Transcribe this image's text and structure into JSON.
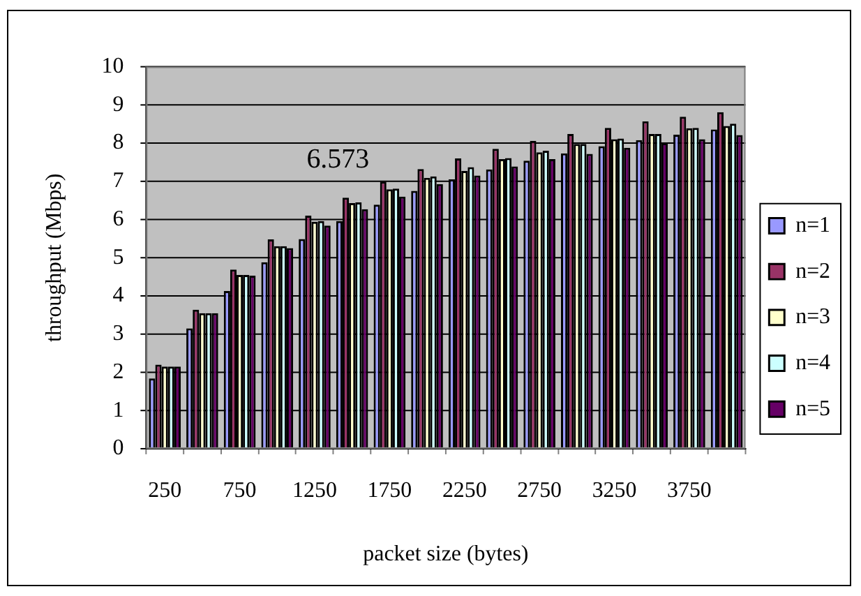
{
  "chart_data": {
    "type": "bar",
    "xlabel": "packet size (bytes)",
    "ylabel": "throughput (Mbps)",
    "categories": [
      "250",
      null,
      "750",
      null,
      "1250",
      null,
      "1750",
      null,
      "2250",
      null,
      "2750",
      null,
      "3250",
      null,
      "3750",
      null
    ],
    "series": [
      {
        "name": "n=1",
        "color": "#9999ff",
        "values": [
          1.84,
          3.15,
          4.13,
          4.88,
          5.49,
          5.96,
          6.39,
          6.75,
          7.05,
          7.31,
          7.54,
          7.73,
          7.92,
          8.08,
          8.22,
          8.36
        ]
      },
      {
        "name": "n=2",
        "color": "#993366",
        "values": [
          2.2,
          3.64,
          4.69,
          5.48,
          6.1,
          6.573,
          6.99,
          7.32,
          7.6,
          7.85,
          8.06,
          8.24,
          8.4,
          8.57,
          8.69,
          8.81
        ]
      },
      {
        "name": "n=3",
        "color": "#ffffcc",
        "values": [
          2.15,
          3.55,
          4.55,
          5.3,
          5.94,
          6.43,
          6.79,
          7.09,
          7.27,
          7.58,
          7.76,
          7.98,
          8.1,
          8.24,
          8.39,
          8.45
        ]
      },
      {
        "name": "n=4",
        "color": "#ccffff",
        "values": [
          2.15,
          3.55,
          4.55,
          5.3,
          5.96,
          6.45,
          6.81,
          7.13,
          7.37,
          7.61,
          7.8,
          7.98,
          8.12,
          8.24,
          8.4,
          8.51
        ]
      },
      {
        "name": "n=5",
        "color": "#660066",
        "values": [
          2.15,
          3.55,
          4.53,
          5.25,
          5.84,
          6.27,
          6.6,
          6.93,
          7.15,
          7.39,
          7.58,
          7.72,
          7.88,
          8.0,
          8.1,
          8.21
        ]
      }
    ],
    "ylim": [
      0,
      10
    ],
    "yticks": [
      0,
      1,
      2,
      3,
      4,
      5,
      6,
      7,
      8,
      9,
      10
    ],
    "grid": "y",
    "legend": "right",
    "annotations": [
      "6.573"
    ]
  }
}
